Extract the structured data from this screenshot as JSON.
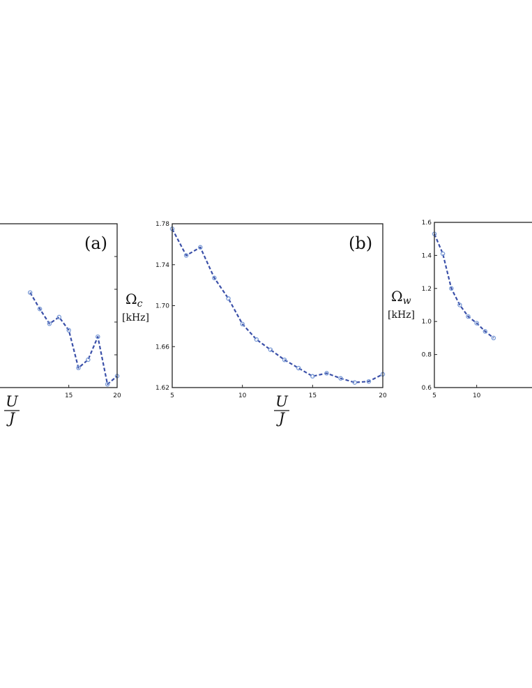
{
  "chart_data": [
    {
      "type": "line",
      "panel_label": "(a)",
      "xlabel_num": "U",
      "xlabel_den": "J",
      "ylabel_symbol": "",
      "ylabel_sub": "",
      "ylabel_unit": "",
      "xlim": [
        5,
        20
      ],
      "ylim": [
        0,
        1
      ],
      "xticks": [
        15,
        20
      ],
      "yticks": [],
      "color": "#3a4fa8",
      "marker_color": "#7a9bd6",
      "x": [
        11,
        12,
        13,
        14,
        15,
        16,
        17,
        18,
        19,
        20
      ],
      "values": [
        0.58,
        0.48,
        0.39,
        0.43,
        0.35,
        0.12,
        0.17,
        0.31,
        0.02,
        0.07
      ]
    },
    {
      "type": "line",
      "panel_label": "(b)",
      "xlabel_num": "U",
      "xlabel_den": "J",
      "ylabel_symbol": "Ω",
      "ylabel_sub": "c",
      "ylabel_unit": "[kHz]",
      "xlim": [
        5,
        20
      ],
      "ylim": [
        1.62,
        1.78
      ],
      "xticks": [
        5,
        10,
        15,
        20
      ],
      "yticks": [
        "1.62",
        "1.66",
        "1.70",
        "1.74",
        "1.78"
      ],
      "color": "#3a4fa8",
      "marker_color": "#7a9bd6",
      "x": [
        5,
        6,
        7,
        8,
        9,
        10,
        11,
        12,
        13,
        14,
        15,
        16,
        17,
        18,
        19,
        20
      ],
      "values": [
        1.775,
        1.749,
        1.757,
        1.727,
        1.707,
        1.682,
        1.667,
        1.657,
        1.647,
        1.639,
        1.631,
        1.634,
        1.629,
        1.625,
        1.626,
        1.633
      ]
    },
    {
      "type": "line",
      "panel_label": "",
      "xlabel_num": "",
      "xlabel_den": "",
      "ylabel_symbol": "Ω",
      "ylabel_sub": "w",
      "ylabel_unit": "[kHz]",
      "xlim": [
        5,
        20
      ],
      "ylim": [
        0.6,
        1.6
      ],
      "xticks": [
        5,
        10
      ],
      "yticks": [
        "0.6",
        "0.8",
        "1.0",
        "1.2",
        "1.4",
        "1.6"
      ],
      "color": "#3a4fa8",
      "marker_color": "#7a9bd6",
      "x": [
        5,
        6,
        7,
        8,
        9,
        10,
        11,
        12
      ],
      "values": [
        1.53,
        1.41,
        1.2,
        1.1,
        1.03,
        0.99,
        0.94,
        0.9
      ]
    }
  ]
}
